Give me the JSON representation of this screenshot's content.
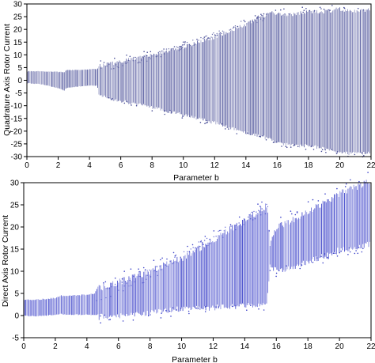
{
  "chart_data": [
    {
      "type": "line",
      "name": "top-panel",
      "xlabel": "Parameter b",
      "ylabel": "Quadrature Axis Rotor Current",
      "xlim": [
        0,
        22
      ],
      "ylim": [
        -30,
        30
      ],
      "xticks": [
        0,
        2,
        4,
        6,
        8,
        10,
        12,
        14,
        16,
        18,
        20,
        22
      ],
      "yticks": [
        -30,
        -25,
        -20,
        -15,
        -10,
        -5,
        0,
        5,
        10,
        15,
        20,
        25,
        30
      ],
      "grid": false,
      "color": "#4a4f98",
      "envelope": {
        "b": [
          0,
          1,
          2,
          2.4,
          2.5,
          3,
          4,
          4.5,
          4.6,
          5,
          6,
          8,
          10,
          12,
          14,
          15.4,
          15.6,
          16,
          17,
          18,
          19,
          20,
          21,
          22
        ],
        "max": [
          3.5,
          3.5,
          3.3,
          3.2,
          4,
          4,
          4.3,
          4.5,
          5.5,
          6,
          7.5,
          10,
          13,
          17,
          22,
          26,
          27,
          26,
          26,
          27,
          27,
          28,
          27,
          28
        ],
        "min": [
          -1,
          -1.5,
          -3,
          -4,
          -3,
          -2.5,
          -2,
          -2,
          -5.5,
          -6,
          -7.5,
          -10,
          -13,
          -16,
          -20,
          -22,
          -23,
          -24,
          -25,
          -25,
          -26,
          -28,
          -28,
          -28
        ]
      },
      "inner_band": {
        "b": [
          4.6,
          6,
          8,
          10,
          12,
          14,
          15.5
        ],
        "max": [
          5.3,
          7.5,
          10.5,
          14.5,
          19,
          24,
          26.5
        ],
        "min": [
          0,
          0,
          0,
          0,
          0,
          0,
          0
        ]
      }
    },
    {
      "type": "line",
      "name": "bottom-panel",
      "xlabel": "Parameter b",
      "ylabel": "Direct Axis Rotor Current",
      "xlim": [
        0,
        22
      ],
      "ylim": [
        -5,
        30
      ],
      "xticks": [
        0,
        2,
        4,
        6,
        8,
        10,
        12,
        14,
        16,
        18,
        20,
        22
      ],
      "yticks": [
        -5,
        0,
        5,
        10,
        15,
        20,
        25,
        30
      ],
      "grid": false,
      "color": "#3d43c9",
      "envelope": {
        "b": [
          0,
          1,
          2,
          2.4,
          2.5,
          3,
          4,
          4.5,
          4.6,
          5,
          6,
          8,
          10,
          12,
          14,
          15.4,
          15.6,
          16,
          17,
          18,
          19,
          20,
          21,
          22
        ],
        "max": [
          3.6,
          3.6,
          4,
          4.5,
          4.5,
          4.5,
          4.7,
          5,
          6,
          6.5,
          7.5,
          10,
          13,
          17,
          21.5,
          25,
          16,
          20,
          21.5,
          23.5,
          25.5,
          27.5,
          29,
          30.5
        ],
        "min": [
          0,
          0,
          0.3,
          0.5,
          0.3,
          0.3,
          0.3,
          0.2,
          0.3,
          0.5,
          0.6,
          1.2,
          2.2,
          2.5,
          3,
          3.5,
          12,
          11,
          11.5,
          13,
          14,
          15.5,
          16,
          17
        ]
      },
      "inner_band": {
        "b": [
          4.6,
          6,
          8,
          10,
          12,
          14,
          15.5
        ],
        "max": [
          5.6,
          7.5,
          10.5,
          14.5,
          18.5,
          22.5,
          25.5
        ],
        "min": [
          5.6,
          7.5,
          10.5,
          14.5,
          18.5,
          22.5,
          25.5
        ]
      }
    }
  ]
}
